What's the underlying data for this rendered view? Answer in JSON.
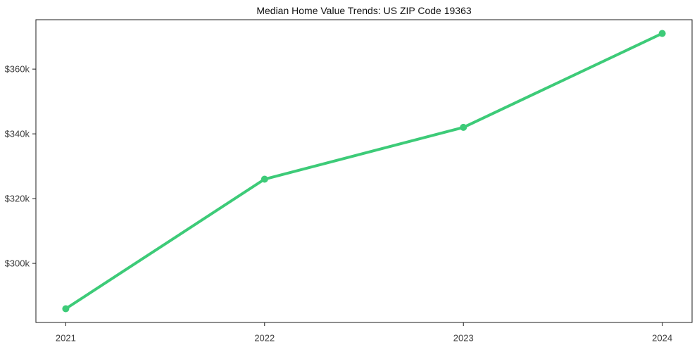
{
  "chart_data": {
    "type": "line",
    "title": "Median Home Value Trends: US ZIP Code 19363",
    "x": [
      2021,
      2022,
      2023,
      2024
    ],
    "x_tick_labels": [
      "2021",
      "2022",
      "2023",
      "2024"
    ],
    "series": [
      {
        "name": "median-home-value",
        "values": [
          286000,
          326000,
          342000,
          371000
        ],
        "color": "#3dcb78",
        "marker": "circle",
        "line_width": 4,
        "marker_radius": 5
      }
    ],
    "y_ticks": [
      300000,
      320000,
      340000,
      360000
    ],
    "y_tick_labels": [
      "$300k",
      "$320k",
      "$340k",
      "$360k"
    ],
    "xlim": [
      2020.85,
      2024.15
    ],
    "ylim": [
      281750,
      375250
    ],
    "grid": false,
    "legend": "none",
    "xlabel": "",
    "ylabel": "",
    "background_color": "#ffffff",
    "spine_color": "#1c1c1c",
    "tick_color": "#1c1c1c",
    "tick_label_color": "#3d3d3d",
    "title_color": "#111111"
  }
}
